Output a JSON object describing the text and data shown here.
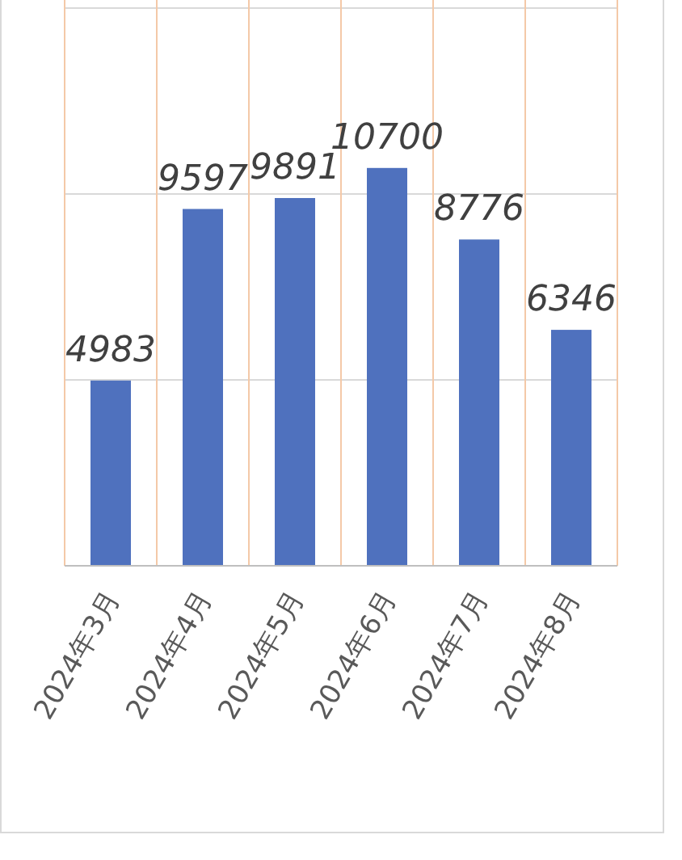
{
  "chart_data": {
    "type": "bar",
    "categories": [
      "2024年3月",
      "2024年4月",
      "2024年5月",
      "2024年6月",
      "2024年7月",
      "2024年8月"
    ],
    "values": [
      4983,
      9597,
      9891,
      10700,
      8776,
      6346
    ],
    "color": "#4f71be",
    "data_labels": true,
    "grid": true,
    "tick_labels": "x",
    "ylim": [
      0,
      15000
    ],
    "yticks": [
      {
        "value": 0,
        "label": null
      },
      {
        "value": 5000,
        "label": null
      },
      {
        "value": 10000,
        "label": null
      },
      {
        "value": 15000,
        "label": null
      }
    ]
  }
}
